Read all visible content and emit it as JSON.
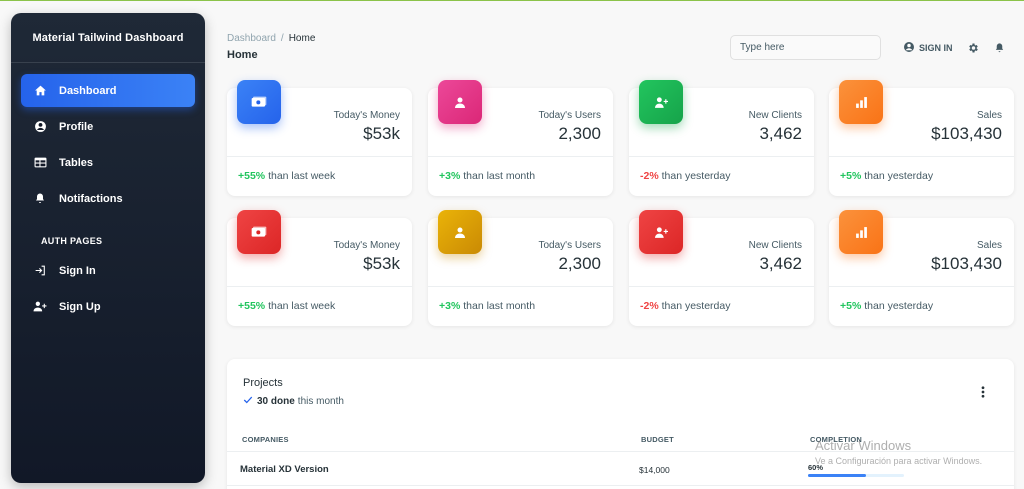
{
  "sidebar": {
    "title": "Material Tailwind Dashboard",
    "items": [
      {
        "label": "Dashboard",
        "icon": "home-icon"
      },
      {
        "label": "Profile",
        "icon": "user-circle-icon"
      },
      {
        "label": "Tables",
        "icon": "table-icon"
      },
      {
        "label": "Notifactions",
        "icon": "bell-icon"
      }
    ],
    "section_label": "AUTH PAGES",
    "auth_items": [
      {
        "label": "Sign In",
        "icon": "sign-in-icon"
      },
      {
        "label": "Sign Up",
        "icon": "user-plus-icon"
      }
    ]
  },
  "header": {
    "breadcrumb_root": "Dashboard",
    "breadcrumb_sep": "/",
    "breadcrumb_current": "Home",
    "title": "Home",
    "search_placeholder": "Type here",
    "sign_in": "SIGN IN"
  },
  "cards": [
    {
      "label": "Today's Money",
      "value": "$53k",
      "change": "+55%",
      "suffix": "than last week",
      "color": "#2563eb",
      "icon": "money-icon"
    },
    {
      "label": "Today's Users",
      "value": "2,300",
      "change": "+3%",
      "suffix": "than last month",
      "color": "#db2777",
      "icon": "user-icon"
    },
    {
      "label": "New Clients",
      "value": "3,462",
      "change": "-2%",
      "suffix": "than yesterday",
      "color": "#16a34a",
      "icon": "user-plus-icon"
    },
    {
      "label": "Sales",
      "value": "$103,430",
      "change": "+5%",
      "suffix": "than yesterday",
      "color": "#f97316",
      "icon": "chart-icon"
    },
    {
      "label": "Today's Money",
      "value": "$53k",
      "change": "+55%",
      "suffix": "than last week",
      "color": "#dc2626",
      "icon": "money-icon"
    },
    {
      "label": "Today's Users",
      "value": "2,300",
      "change": "+3%",
      "suffix": "than last month",
      "color": "#ca8a04",
      "icon": "user-icon"
    },
    {
      "label": "New Clients",
      "value": "3,462",
      "change": "-2%",
      "suffix": "than yesterday",
      "color": "#dc2626",
      "icon": "user-plus-icon"
    },
    {
      "label": "Sales",
      "value": "$103,430",
      "change": "+5%",
      "suffix": "than yesterday",
      "color": "#f97316",
      "icon": "chart-icon"
    }
  ],
  "projects": {
    "title": "Projects",
    "done_count": "30 done",
    "done_suffix": "this month",
    "columns": [
      "COMPANIES",
      "BUDGET",
      "COMPLETION"
    ],
    "rows": [
      {
        "company": "Material XD Version",
        "budget": "$14,000",
        "completion": "60%",
        "completion_value": 0.6
      }
    ]
  },
  "watermark": {
    "line1": "Activar Windows",
    "line2": "Ve a Configuración para activar Windows."
  }
}
